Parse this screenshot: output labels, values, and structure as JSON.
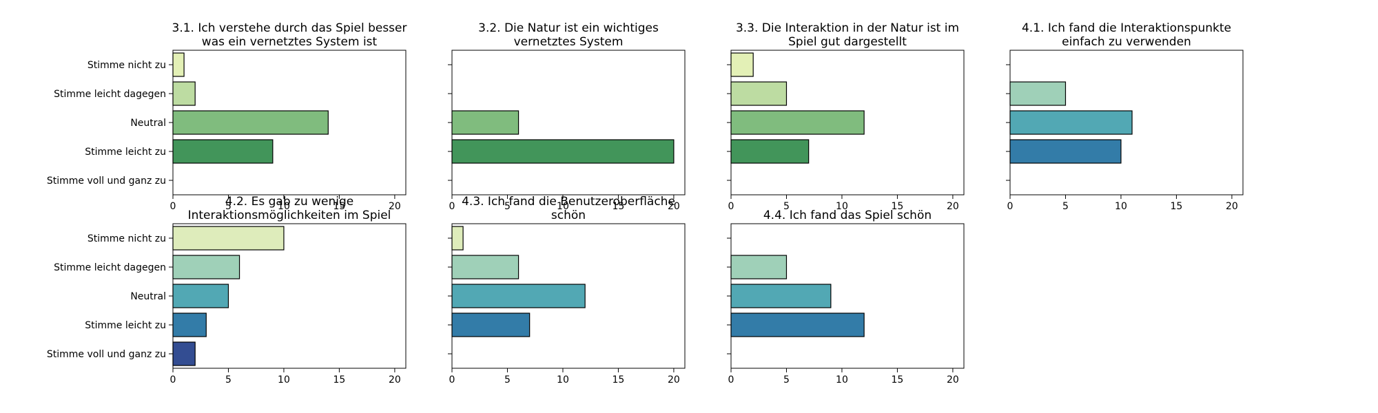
{
  "chart_data": {
    "type": "bar",
    "orientation": "horizontal",
    "categories": [
      "Stimme nicht zu",
      "Stimme leicht dagegen",
      "Neutral",
      "Stimme leicht zu",
      "Stimme voll und ganz zu"
    ],
    "xlim": [
      0,
      21
    ],
    "xticks": [
      0,
      5,
      10,
      15,
      20
    ],
    "palette": [
      "#e3f0b6",
      "#bddca2",
      "#80bc7e",
      "#42955a",
      "#9fd0b8",
      "#52a8b4",
      "#337ca8",
      "#334d92",
      "#deecbb"
    ],
    "subplots": [
      {
        "title_lines": [
          "3.1. Ich verstehe durch das Spiel besser",
          "was ein vernetztes System ist"
        ],
        "values": [
          1,
          2,
          14,
          9,
          0
        ],
        "colors": [
          "#e3f0b6",
          "#bddca2",
          "#80bc7e",
          "#42955a",
          "#42955a"
        ]
      },
      {
        "title_lines": [
          "3.2. Die Natur ist ein wichtiges",
          "vernetztes System"
        ],
        "values": [
          0,
          0,
          6,
          20,
          0
        ],
        "colors": [
          "#e3f0b6",
          "#bddca2",
          "#80bc7e",
          "#42955a",
          "#42955a"
        ]
      },
      {
        "title_lines": [
          "3.3. Die Interaktion in der Natur ist im",
          "Spiel gut dargestellt"
        ],
        "values": [
          2,
          5,
          12,
          7,
          0
        ],
        "colors": [
          "#e3f0b6",
          "#bddca2",
          "#80bc7e",
          "#42955a",
          "#42955a"
        ]
      },
      {
        "title_lines": [
          "4.1. Ich fand die Interaktionspunkte",
          "einfach zu verwenden"
        ],
        "values": [
          0,
          5,
          11,
          10,
          0
        ],
        "colors": [
          "#deecbb",
          "#9fd0b8",
          "#52a8b4",
          "#337ca8",
          "#334d92"
        ]
      },
      {
        "title_lines": [
          "4.2. Es gab zu wenige",
          "Interaktionsmöglichkeiten im Spiel"
        ],
        "values": [
          10,
          6,
          5,
          3,
          2
        ],
        "colors": [
          "#deecbb",
          "#9fd0b8",
          "#52a8b4",
          "#337ca8",
          "#334d92"
        ]
      },
      {
        "title_lines": [
          "4.3. Ich fand die Benutzeroberfläche",
          "schön"
        ],
        "values": [
          1,
          6,
          12,
          7,
          0
        ],
        "colors": [
          "#deecbb",
          "#9fd0b8",
          "#52a8b4",
          "#337ca8",
          "#334d92"
        ]
      },
      {
        "title_lines": [
          "4.4. Ich fand das Spiel schön"
        ],
        "values": [
          0,
          5,
          9,
          12,
          0
        ],
        "colors": [
          "#deecbb",
          "#9fd0b8",
          "#52a8b4",
          "#337ca8",
          "#334d92"
        ]
      }
    ]
  }
}
